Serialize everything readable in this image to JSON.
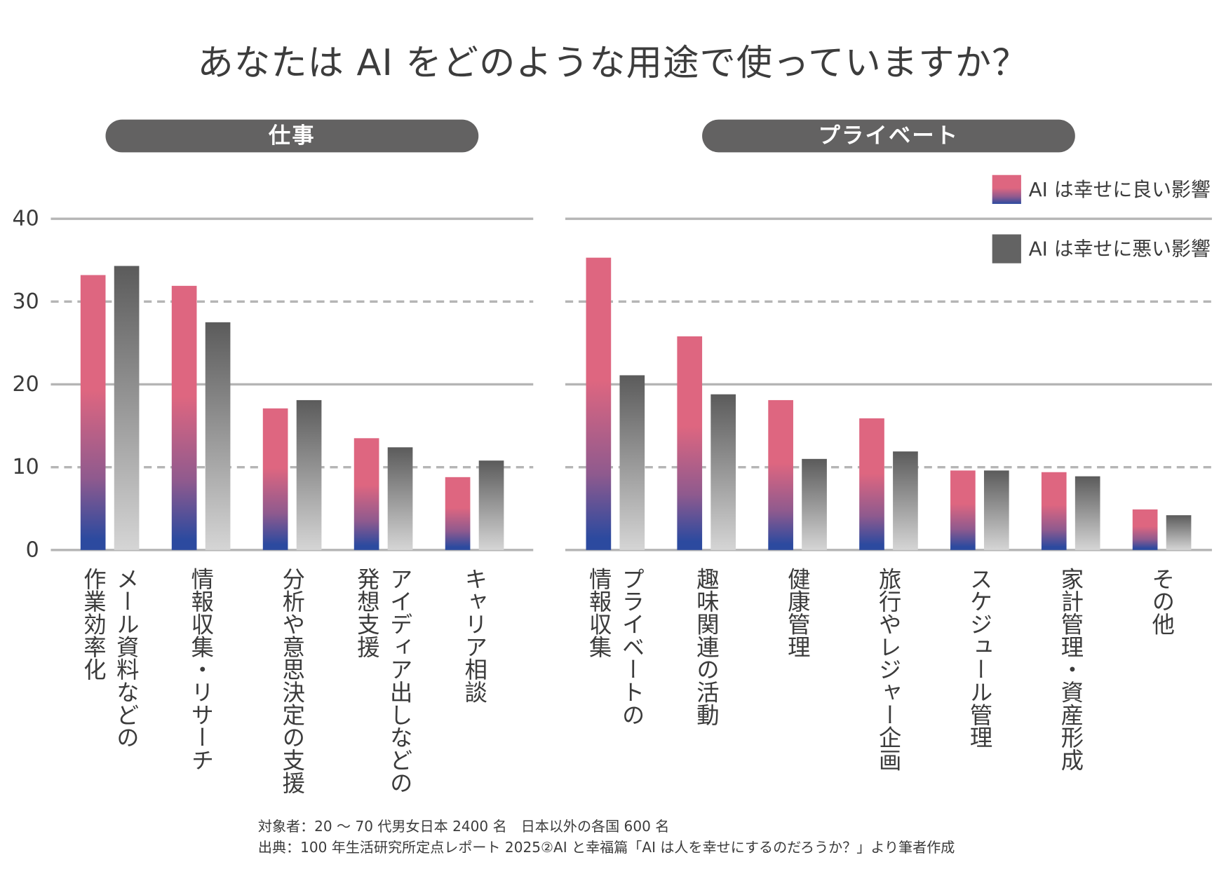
{
  "title": "あなたは AI をどのような用途で使っていますか？",
  "footnotes": [
    "対象者：20 ～ 70 代男女日本 2400 名　日本以外の各国 600 名",
    "出典：100 年生活研究所定点レポート 2025②AI と幸福篇「AI は人を幸せにするのだろうか？」より筆者作成"
  ],
  "colors": {
    "good_top": "#de6680",
    "good_mid": "#8f5a8e",
    "good_bottom": "#2c4a9f",
    "bad_top": "#5b5b5b",
    "bad_bottom": "#d5d5d5",
    "legend_bad": "#636363",
    "panel_header": "#636262",
    "grid": "#b5b5b5",
    "text": "#3b3b3b"
  },
  "chart_data": [
    {
      "type": "bar",
      "title": "仕事",
      "categories": [
        "メール資料などの\n作業効率化",
        "情報収集・リサーチ",
        "分析や意思決定の支援",
        "アイディア出しなどの\n発想支援",
        "キャリア相談"
      ],
      "series": [
        {
          "name": "AI は幸せに良い影響",
          "values": [
            33.2,
            31.9,
            17.1,
            13.5,
            8.8
          ]
        },
        {
          "name": "AI は幸せに悪い影響",
          "values": [
            34.3,
            27.5,
            18.1,
            12.4,
            10.8
          ]
        }
      ],
      "ylim": [
        0,
        40
      ],
      "yticks": [
        0,
        10,
        20,
        30,
        40
      ],
      "grid": true,
      "legend_position": "top-right"
    },
    {
      "type": "bar",
      "title": "プライベート",
      "categories": [
        "プライベートの\n情報収集",
        "趣味関連の活動",
        "健康管理",
        "旅行やレジャー企画",
        "スケジュール管理",
        "家計管理・資産形成",
        "その他"
      ],
      "series": [
        {
          "name": "AI は幸せに良い影響",
          "values": [
            35.3,
            25.8,
            18.1,
            15.9,
            9.6,
            9.4,
            4.9
          ]
        },
        {
          "name": "AI は幸せに悪い影響",
          "values": [
            21.1,
            18.8,
            11.0,
            11.9,
            9.6,
            8.9,
            4.2
          ]
        }
      ],
      "ylim": [
        0,
        40
      ],
      "grid": true,
      "legend_position": "top-right"
    }
  ]
}
